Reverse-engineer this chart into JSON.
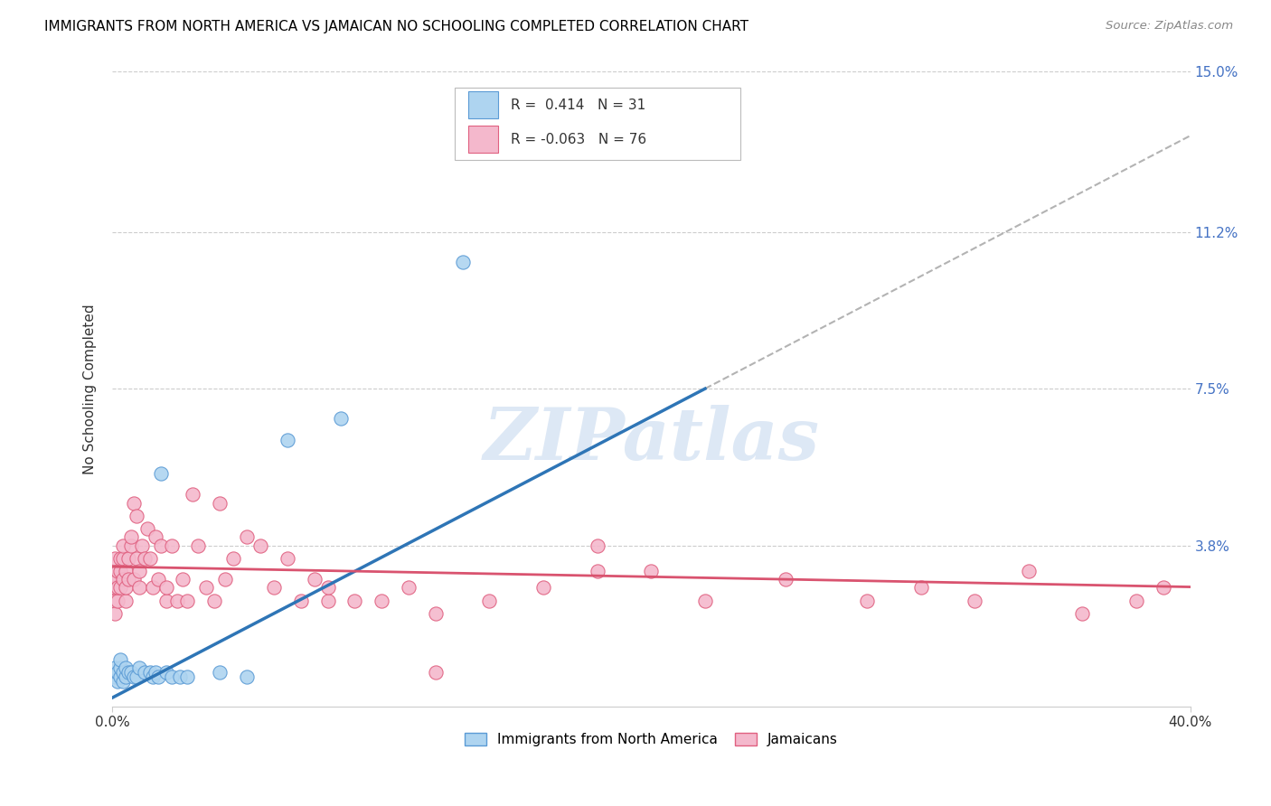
{
  "title": "IMMIGRANTS FROM NORTH AMERICA VS JAMAICAN NO SCHOOLING COMPLETED CORRELATION CHART",
  "source": "Source: ZipAtlas.com",
  "ylabel": "No Schooling Completed",
  "xlim": [
    0.0,
    0.4
  ],
  "ylim": [
    0.0,
    0.15
  ],
  "ytick_labels": [
    "15.0%",
    "11.2%",
    "7.5%",
    "3.8%"
  ],
  "ytick_positions": [
    0.15,
    0.112,
    0.075,
    0.038
  ],
  "legend_label1": "Immigrants from North America",
  "legend_label2": "Jamaicans",
  "blue_color": "#aed4f0",
  "pink_color": "#f4b8cc",
  "blue_edge": "#5b9bd5",
  "pink_edge": "#e06080",
  "trendline_blue": "#2e75b6",
  "trendline_pink": "#d9536f",
  "trendline_gray": "#a0a0a0",
  "watermark": "ZIPatlas",
  "blue_points_x": [
    0.001,
    0.001,
    0.002,
    0.002,
    0.003,
    0.003,
    0.003,
    0.004,
    0.004,
    0.005,
    0.005,
    0.006,
    0.007,
    0.008,
    0.009,
    0.01,
    0.012,
    0.014,
    0.015,
    0.016,
    0.017,
    0.018,
    0.02,
    0.022,
    0.025,
    0.028,
    0.04,
    0.05,
    0.065,
    0.085,
    0.13
  ],
  "blue_points_y": [
    0.007,
    0.009,
    0.006,
    0.008,
    0.007,
    0.009,
    0.011,
    0.006,
    0.008,
    0.007,
    0.009,
    0.008,
    0.008,
    0.007,
    0.007,
    0.009,
    0.008,
    0.008,
    0.007,
    0.008,
    0.007,
    0.055,
    0.008,
    0.007,
    0.007,
    0.007,
    0.008,
    0.007,
    0.063,
    0.068,
    0.105
  ],
  "pink_points_x": [
    0.001,
    0.001,
    0.001,
    0.001,
    0.001,
    0.002,
    0.002,
    0.002,
    0.002,
    0.003,
    0.003,
    0.003,
    0.004,
    0.004,
    0.004,
    0.005,
    0.005,
    0.005,
    0.006,
    0.006,
    0.007,
    0.007,
    0.008,
    0.008,
    0.009,
    0.009,
    0.01,
    0.01,
    0.011,
    0.012,
    0.013,
    0.014,
    0.015,
    0.016,
    0.017,
    0.018,
    0.02,
    0.02,
    0.022,
    0.024,
    0.026,
    0.028,
    0.03,
    0.032,
    0.035,
    0.038,
    0.04,
    0.042,
    0.045,
    0.05,
    0.055,
    0.06,
    0.065,
    0.07,
    0.075,
    0.08,
    0.09,
    0.1,
    0.11,
    0.12,
    0.14,
    0.16,
    0.18,
    0.22,
    0.25,
    0.28,
    0.3,
    0.32,
    0.34,
    0.36,
    0.38,
    0.39,
    0.18,
    0.2,
    0.08,
    0.12
  ],
  "pink_points_y": [
    0.03,
    0.028,
    0.025,
    0.022,
    0.035,
    0.025,
    0.03,
    0.028,
    0.032,
    0.028,
    0.032,
    0.035,
    0.03,
    0.035,
    0.038,
    0.025,
    0.028,
    0.032,
    0.03,
    0.035,
    0.038,
    0.04,
    0.048,
    0.03,
    0.045,
    0.035,
    0.028,
    0.032,
    0.038,
    0.035,
    0.042,
    0.035,
    0.028,
    0.04,
    0.03,
    0.038,
    0.025,
    0.028,
    0.038,
    0.025,
    0.03,
    0.025,
    0.05,
    0.038,
    0.028,
    0.025,
    0.048,
    0.03,
    0.035,
    0.04,
    0.038,
    0.028,
    0.035,
    0.025,
    0.03,
    0.025,
    0.025,
    0.025,
    0.028,
    0.022,
    0.025,
    0.028,
    0.032,
    0.025,
    0.03,
    0.025,
    0.028,
    0.025,
    0.032,
    0.022,
    0.025,
    0.028,
    0.038,
    0.032,
    0.028,
    0.008
  ]
}
